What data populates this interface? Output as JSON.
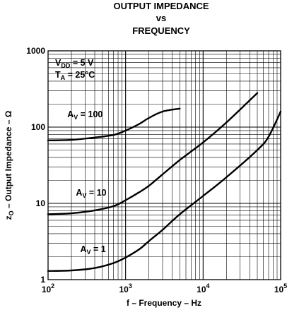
{
  "chart_data": {
    "type": "line",
    "title_lines": [
      "OUTPUT IMPEDANCE",
      "vs",
      "FREQUENCY"
    ],
    "xlabel": "f – Frequency – Hz",
    "ylabel_main": "z",
    "ylabel_sub": "O",
    "ylabel_rest": " – Output Impedance – Ω",
    "x_scale": "log",
    "y_scale": "log",
    "xlim": [
      100,
      100000
    ],
    "ylim": [
      1,
      1000
    ],
    "grid": true,
    "x_ticks": [
      {
        "base": "10",
        "exp": "2",
        "value": 100
      },
      {
        "base": "10",
        "exp": "3",
        "value": 1000
      },
      {
        "base": "10",
        "exp": "4",
        "value": 10000
      },
      {
        "base": "10",
        "exp": "5",
        "value": 100000
      }
    ],
    "y_ticks": [
      {
        "label": "1",
        "value": 1
      },
      {
        "label": "10",
        "value": 10
      },
      {
        "label": "100",
        "value": 100
      },
      {
        "label": "1000",
        "value": 1000
      }
    ],
    "conditions": [
      {
        "main": "V",
        "sub": "DD",
        "rest": " = 5 V"
      },
      {
        "main": "T",
        "sub": "A",
        "rest": " = 25°C"
      }
    ],
    "series": [
      {
        "label_main": "A",
        "label_sub": "V",
        "label_rest": " = 100",
        "label_at": [
          300,
          135
        ],
        "points": [
          [
            100,
            67
          ],
          [
            200,
            68
          ],
          [
            400,
            73
          ],
          [
            700,
            79
          ],
          [
            1000,
            90
          ],
          [
            1500,
            110
          ],
          [
            2000,
            132
          ],
          [
            3000,
            160
          ],
          [
            5000,
            175
          ]
        ]
      },
      {
        "label_main": "A",
        "label_sub": "V",
        "label_rest": " = 10",
        "label_at": [
          360,
          12.7
        ],
        "points": [
          [
            100,
            7.2
          ],
          [
            200,
            7.4
          ],
          [
            400,
            8.1
          ],
          [
            700,
            9.2
          ],
          [
            1000,
            11
          ],
          [
            1500,
            14
          ],
          [
            2000,
            17
          ],
          [
            3000,
            24
          ],
          [
            5000,
            37
          ],
          [
            10000,
            63
          ],
          [
            20000,
            115
          ],
          [
            50000,
            280
          ]
        ]
      },
      {
        "label_main": "A",
        "label_sub": "V",
        "label_rest": " = 1",
        "label_at": [
          380,
          2.3
        ],
        "points": [
          [
            100,
            1.3
          ],
          [
            200,
            1.32
          ],
          [
            400,
            1.42
          ],
          [
            700,
            1.65
          ],
          [
            1000,
            1.95
          ],
          [
            1500,
            2.5
          ],
          [
            2000,
            3.2
          ],
          [
            3000,
            4.5
          ],
          [
            5000,
            7.2
          ],
          [
            10000,
            12.5
          ],
          [
            20000,
            22
          ],
          [
            50000,
            50
          ],
          [
            70000,
            75
          ],
          [
            100000,
            160
          ]
        ]
      }
    ]
  }
}
